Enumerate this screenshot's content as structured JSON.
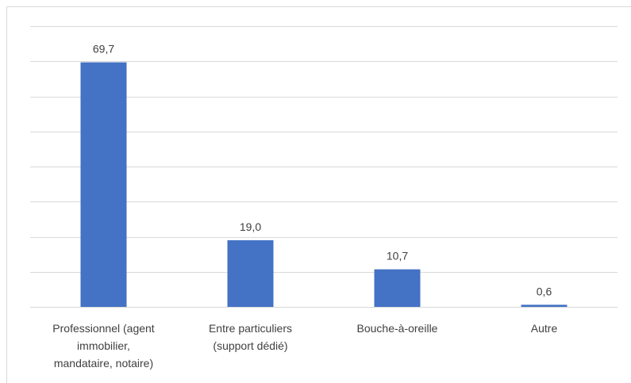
{
  "chart_data": {
    "type": "bar",
    "categories": [
      [
        "Professionnel (agent",
        "immobilier,",
        "mandataire, notaire)"
      ],
      [
        "Entre particuliers",
        "(support dédié)"
      ],
      [
        "Bouche-à-oreille"
      ],
      [
        "Autre"
      ]
    ],
    "values": [
      69.7,
      19.0,
      10.7,
      0.6
    ],
    "value_labels": [
      "69,7",
      "19,0",
      "10,7",
      "0,6"
    ],
    "title": "",
    "xlabel": "",
    "ylabel": "",
    "ylim": [
      0,
      80
    ],
    "y_gridline_step": 10,
    "y_axis_labels_shown": false,
    "grid": true,
    "legend": "none",
    "bar_color": "#4472c4",
    "grid_color": "#d9d9d9",
    "label_color": "#404040"
  }
}
